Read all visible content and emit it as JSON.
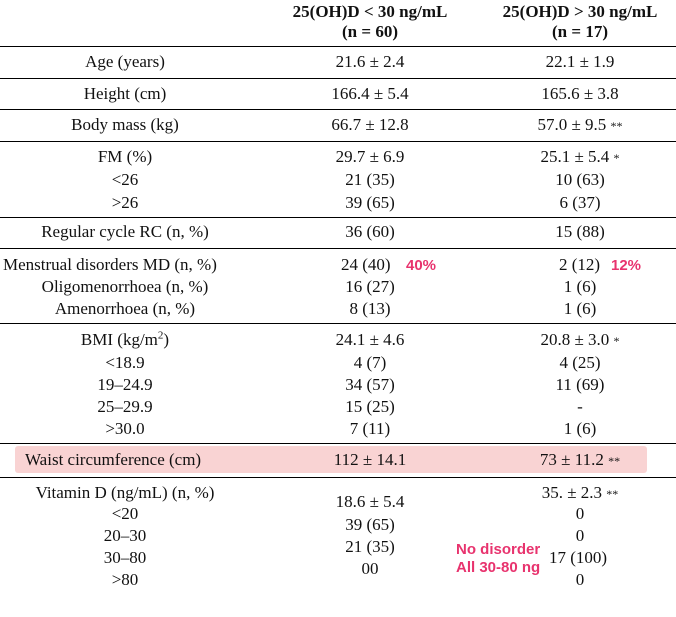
{
  "header": {
    "group1_title": "25(OH)D < 30 ng/mL",
    "group1_n": "(n = 60)",
    "group2_title": "25(OH)D > 30 ng/mL",
    "group2_n": "(n = 17)"
  },
  "rows": {
    "age": {
      "label": "Age (years)",
      "g1": "21.6 ± 2.4",
      "g2": "22.1 ± 1.9"
    },
    "height": {
      "label": "Height (cm)",
      "g1": "166.4 ± 5.4",
      "g2": "165.6 ± 3.8"
    },
    "body_mass": {
      "label": "Body mass (kg)",
      "g1": "66.7 ± 12.8",
      "g2": "57.0 ± 9.5",
      "g2_sig": "**"
    },
    "fm": {
      "label": "FM (%)",
      "g1": "29.7 ± 6.9",
      "g2": "25.1 ± 5.4",
      "g2_sig": "*",
      "sub": [
        {
          "label": "<26",
          "g1": "21 (35)",
          "g2": "10 (63)"
        },
        {
          "label": ">26",
          "g1": "39 (65)",
          "g2": "6 (37)"
        }
      ]
    },
    "regular_cycle": {
      "label": "Regular cycle RC (n, %)",
      "g1": "36 (60)",
      "g2": "15 (88)"
    },
    "menstrual": {
      "label": "Menstrual disorders MD (n, %)",
      "g1": "24 (40)",
      "g1_note": "40%",
      "g2": "2 (12)",
      "g2_note": "12%",
      "sub": [
        {
          "label": "Oligomenorrhoea (n, %)",
          "g1": "16 (27)",
          "g2": "1 (6)"
        },
        {
          "label": "Amenorrhoea (n, %)",
          "g1": "8 (13)",
          "g2": "1 (6)"
        }
      ]
    },
    "bmi": {
      "label_pre": "BMI (kg/m",
      "label_sup": "2",
      "label_post": ")",
      "g1": "24.1 ± 4.6",
      "g2": "20.8 ± 3.0",
      "g2_sig": "*",
      "sub": [
        {
          "label": "<18.9",
          "g1": "4 (7)",
          "g2": "4 (25)"
        },
        {
          "label": "19–24.9",
          "g1": "34 (57)",
          "g2": "11 (69)"
        },
        {
          "label": "25–29.9",
          "g1": "15 (25)",
          "g2": "-"
        },
        {
          "label": ">30.0",
          "g1": "7 (11)",
          "g2": "1 (6)"
        }
      ]
    },
    "waist": {
      "label": "Waist circumference (cm)",
      "g1": "112 ± 14.1",
      "g2": "73 ± 11.2",
      "g2_sig": "**"
    },
    "vitd": {
      "label": "Vitamin D (ng/mL) (n, %)",
      "g1": "18.6 ± 5.4",
      "g2": "35. ± 2.3",
      "g2_sig": "**",
      "sub": [
        {
          "label": "<20",
          "g1": "39 (65)",
          "g2": "0"
        },
        {
          "label": "20–30",
          "g1": "21 (35)",
          "g2": "0"
        },
        {
          "label": "30–80",
          "g1": "00",
          "g2": "17 (100)"
        },
        {
          "label": ">80",
          "g1": "",
          "g2": "0"
        }
      ]
    }
  },
  "annotations": {
    "note_line1": "No disorder",
    "note_line2": "All 30-80 ng"
  },
  "colors": {
    "annotation": "#e8336e",
    "highlight": "#f9d3d3"
  }
}
